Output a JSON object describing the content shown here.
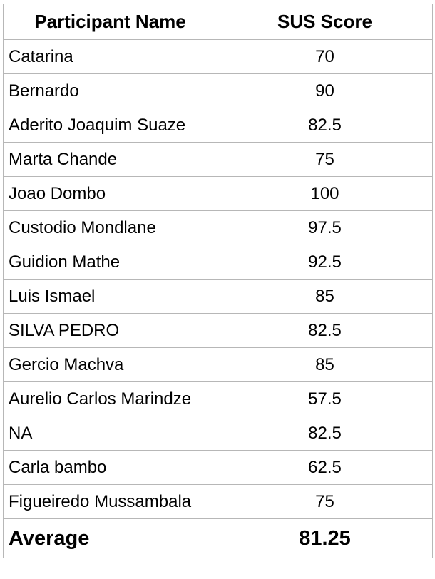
{
  "table": {
    "headers": [
      "Participant Name",
      "SUS Score"
    ],
    "rows": [
      {
        "name": "Catarina",
        "score": "70"
      },
      {
        "name": "Bernardo",
        "score": "90"
      },
      {
        "name": "Aderito Joaquim Suaze",
        "score": "82.5"
      },
      {
        "name": "Marta Chande",
        "score": "75"
      },
      {
        "name": "Joao Dombo",
        "score": "100"
      },
      {
        "name": "Custodio Mondlane",
        "score": "97.5"
      },
      {
        "name": "Guidion Mathe",
        "score": "92.5"
      },
      {
        "name": "Luis Ismael",
        "score": "85"
      },
      {
        "name": "SILVA PEDRO",
        "score": "82.5"
      },
      {
        "name": "Gercio Machva",
        "score": "85"
      },
      {
        "name": "Aurelio Carlos Marindze",
        "score": "57.5"
      },
      {
        "name": "NA",
        "score": "82.5"
      },
      {
        "name": "Carla bambo",
        "score": "62.5"
      },
      {
        "name": "Figueiredo Mussambala",
        "score": "75"
      }
    ],
    "average": {
      "label": "Average",
      "value": "81.25"
    }
  }
}
